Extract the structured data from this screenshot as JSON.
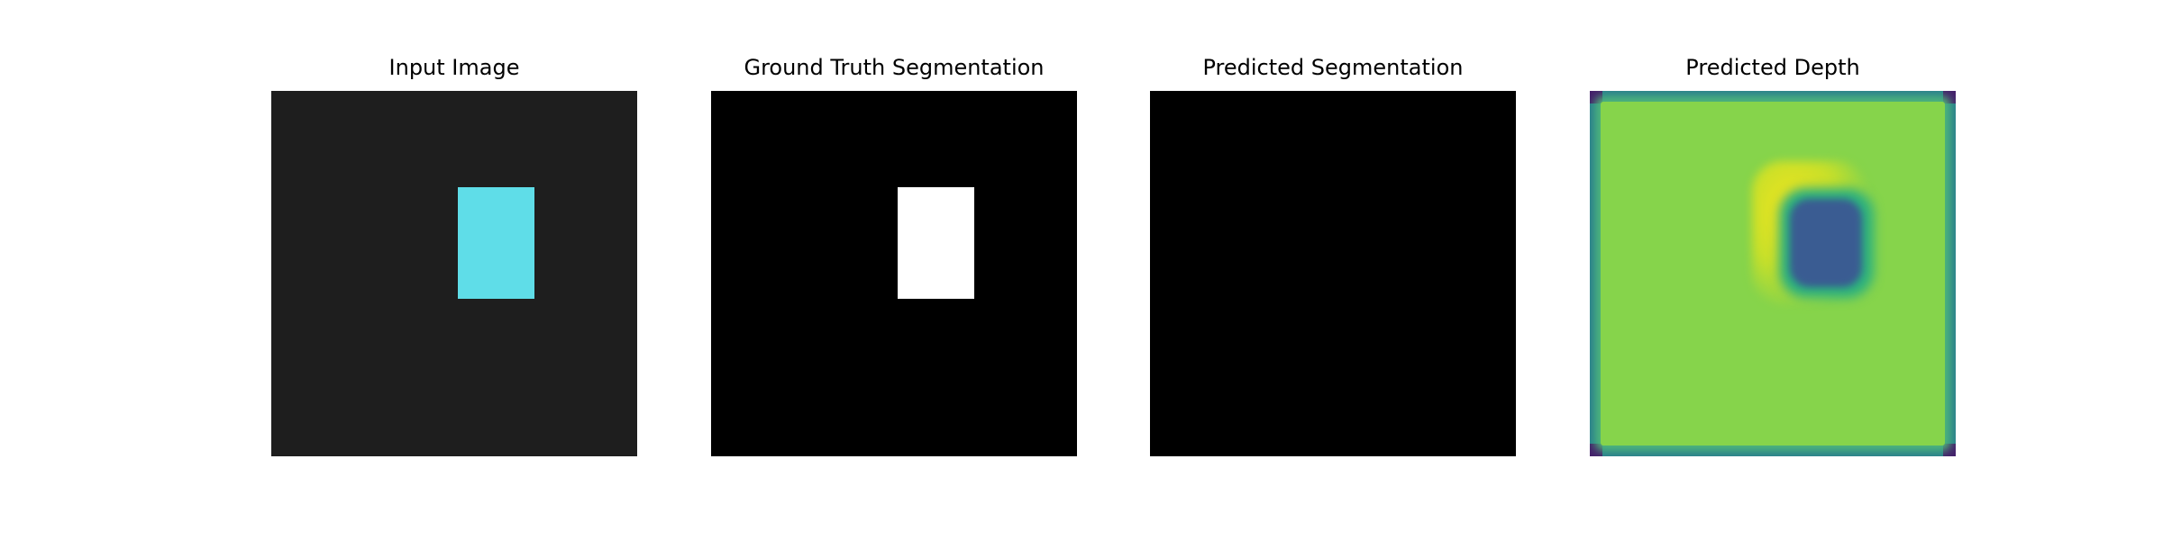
{
  "panels": [
    {
      "title": "Input Image"
    },
    {
      "title": "Ground Truth Segmentation"
    },
    {
      "title": "Predicted Segmentation"
    },
    {
      "title": "Predicted Depth"
    }
  ],
  "colors": {
    "input_background": "#1e1e1e",
    "object_cyan": "#5fdde8",
    "mask_background": "#000000",
    "mask_foreground": "#ffffff",
    "depth_colormap": "viridis"
  }
}
